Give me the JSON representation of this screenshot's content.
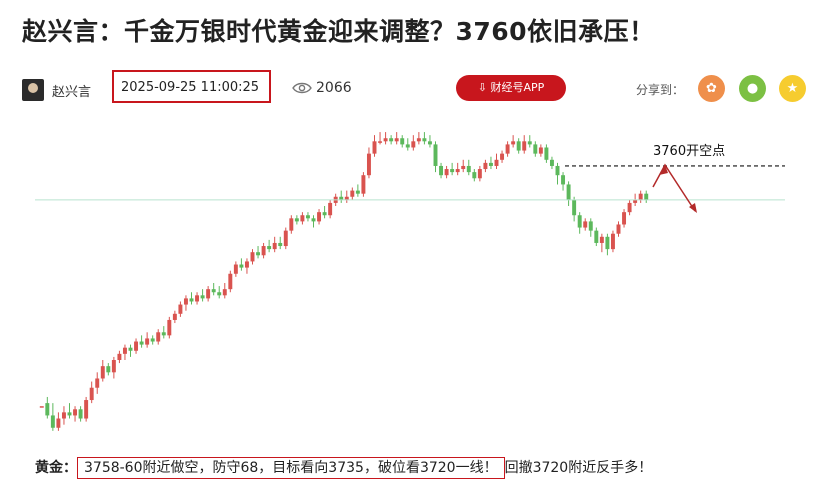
{
  "article": {
    "title": "赵兴言：千金万银时代黄金迎来调整？3760依旧承压！",
    "author": "赵兴言",
    "date": "2025-09-25 11:00:25",
    "views": "2066",
    "app_button": "财经号APP",
    "share_label": "分享到：",
    "share_icons": [
      "weibo-icon",
      "wechat-icon",
      "favorite-icon"
    ]
  },
  "chart_annotation": {
    "label": "3760开空点"
  },
  "footer": {
    "label": "黄金：",
    "boxed_text": "3758-60附近做空，防守68，目标看向3735，破位看3720一线！",
    "tail_text": "回撤3720附近反手多！"
  },
  "colors": {
    "accent": "#c8161d",
    "up": "#d9534f",
    "down": "#5cb85c",
    "support_line": "#b9e3cf"
  },
  "chart_data": {
    "type": "candlestick",
    "title": "",
    "annotation": "3760开空点",
    "candles": [
      [
        0,
        0,
        0,
        0
      ],
      [
        1,
        -3,
        3,
        -4
      ],
      [
        -3,
        -7,
        1,
        -8
      ],
      [
        -7,
        -4,
        -2,
        -8
      ],
      [
        -4,
        -2,
        0,
        -6
      ],
      [
        -2,
        -3,
        1,
        -4
      ],
      [
        -3,
        -1,
        0,
        -5
      ],
      [
        -1,
        -4,
        0,
        -5
      ],
      [
        -4,
        2,
        3,
        -5
      ],
      [
        2,
        6,
        8,
        1
      ],
      [
        6,
        9,
        11,
        4
      ],
      [
        9,
        13,
        15,
        8
      ],
      [
        13,
        11,
        14,
        10
      ],
      [
        11,
        15,
        16,
        9
      ],
      [
        15,
        17,
        18,
        14
      ],
      [
        17,
        19,
        20,
        15
      ],
      [
        19,
        18,
        20,
        16
      ],
      [
        18,
        21,
        22,
        17
      ],
      [
        21,
        20,
        23,
        19
      ],
      [
        20,
        22,
        24,
        19
      ],
      [
        22,
        21,
        23,
        20
      ],
      [
        21,
        24,
        25,
        20
      ],
      [
        24,
        23,
        26,
        22
      ],
      [
        23,
        28,
        29,
        22
      ],
      [
        28,
        30,
        31,
        27
      ],
      [
        30,
        33,
        34,
        29
      ],
      [
        33,
        35,
        36,
        31
      ],
      [
        35,
        34,
        37,
        33
      ],
      [
        34,
        36,
        37,
        33
      ],
      [
        36,
        35,
        38,
        34
      ],
      [
        35,
        38,
        39,
        34
      ],
      [
        38,
        37,
        40,
        36
      ],
      [
        37,
        36,
        39,
        35
      ],
      [
        36,
        38,
        40,
        35
      ],
      [
        38,
        43,
        44,
        37
      ],
      [
        43,
        46,
        47,
        42
      ],
      [
        46,
        45,
        48,
        44
      ],
      [
        45,
        47,
        48,
        43
      ],
      [
        47,
        50,
        51,
        46
      ],
      [
        50,
        49,
        52,
        48
      ],
      [
        49,
        52,
        53,
        48
      ],
      [
        52,
        51,
        54,
        50
      ],
      [
        51,
        53,
        55,
        50
      ],
      [
        53,
        52,
        55,
        51
      ],
      [
        52,
        57,
        58,
        51
      ],
      [
        57,
        61,
        62,
        56
      ],
      [
        61,
        60,
        62,
        59
      ],
      [
        60,
        62,
        63,
        59
      ],
      [
        62,
        61,
        63,
        60
      ],
      [
        61,
        60,
        62,
        58
      ],
      [
        60,
        63,
        64,
        59
      ],
      [
        63,
        62,
        65,
        61
      ],
      [
        62,
        66,
        67,
        61
      ],
      [
        66,
        68,
        69,
        65
      ],
      [
        68,
        67,
        70,
        66
      ],
      [
        67,
        68,
        70,
        66
      ],
      [
        68,
        70,
        71,
        67
      ],
      [
        70,
        69,
        72,
        68
      ],
      [
        69,
        75,
        76,
        68
      ],
      [
        75,
        82,
        84,
        74
      ],
      [
        82,
        86,
        88,
        81
      ],
      [
        86,
        86,
        89,
        85
      ],
      [
        86,
        87,
        89,
        85
      ],
      [
        87,
        86,
        88,
        85
      ],
      [
        86,
        87,
        89,
        85
      ],
      [
        87,
        85,
        88,
        84
      ],
      [
        85,
        84,
        87,
        83
      ],
      [
        84,
        86,
        88,
        83
      ],
      [
        86,
        87,
        89,
        85
      ],
      [
        87,
        86,
        89,
        85
      ],
      [
        86,
        85,
        88,
        84
      ],
      [
        85,
        78,
        86,
        76
      ],
      [
        78,
        75,
        79,
        74
      ],
      [
        75,
        77,
        78,
        74
      ],
      [
        77,
        76,
        79,
        75
      ],
      [
        76,
        77,
        79,
        75
      ],
      [
        77,
        78,
        80,
        76
      ],
      [
        78,
        76,
        80,
        75
      ],
      [
        76,
        74,
        77,
        73
      ],
      [
        74,
        77,
        78,
        73
      ],
      [
        77,
        79,
        80,
        76
      ],
      [
        79,
        78,
        81,
        77
      ],
      [
        78,
        80,
        82,
        77
      ],
      [
        80,
        82,
        83,
        79
      ],
      [
        82,
        85,
        86,
        81
      ],
      [
        85,
        86,
        88,
        84
      ],
      [
        86,
        83,
        87,
        82
      ],
      [
        83,
        86,
        88,
        82
      ],
      [
        86,
        85,
        88,
        84
      ],
      [
        85,
        82,
        86,
        81
      ],
      [
        82,
        84,
        85,
        81
      ],
      [
        84,
        80,
        85,
        79
      ],
      [
        80,
        78,
        81,
        77
      ],
      [
        78,
        75,
        79,
        72
      ],
      [
        75,
        72,
        76,
        70
      ],
      [
        72,
        67,
        73,
        65
      ],
      [
        67,
        62,
        68,
        60
      ],
      [
        62,
        58,
        63,
        56
      ],
      [
        58,
        60,
        61,
        57
      ],
      [
        60,
        57,
        61,
        55
      ],
      [
        57,
        53,
        58,
        52
      ],
      [
        53,
        55,
        56,
        50
      ],
      [
        55,
        51,
        56,
        49
      ],
      [
        51,
        56,
        57,
        50
      ],
      [
        56,
        59,
        60,
        55
      ],
      [
        59,
        63,
        64,
        58
      ],
      [
        63,
        66,
        67,
        62
      ],
      [
        66,
        67,
        69,
        65
      ],
      [
        67,
        69,
        70,
        66
      ],
      [
        69,
        67,
        70,
        66
      ]
    ],
    "level_lines": [
      {
        "value": 78,
        "style": "dashed",
        "note": "3760"
      },
      {
        "value": 67,
        "style": "solid-light"
      }
    ],
    "grid": false
  }
}
